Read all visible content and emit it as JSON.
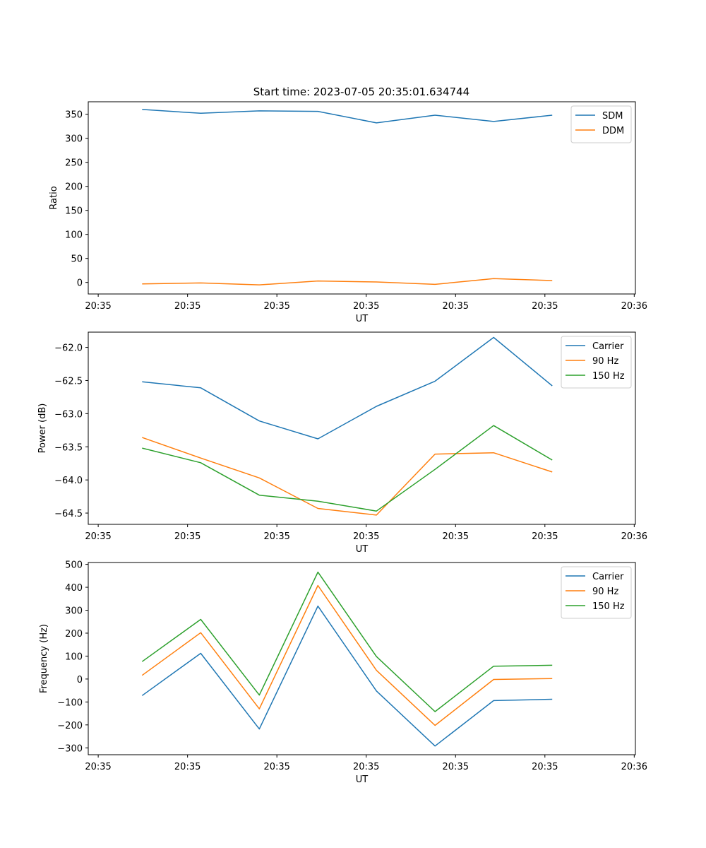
{
  "chart_data": [
    {
      "type": "line",
      "title": "Start time: 2023-07-05 20:35:01.634744",
      "xlabel": "UT",
      "ylabel": "Ratio",
      "x_index": [
        0,
        1,
        2,
        3,
        4,
        5,
        6,
        7
      ],
      "x_ticks": [
        {
          "pos": -0.75,
          "label": "20:35"
        },
        {
          "pos": 0.775,
          "label": "20:35"
        },
        {
          "pos": 2.3,
          "label": "20:35"
        },
        {
          "pos": 3.825,
          "label": "20:35"
        },
        {
          "pos": 5.35,
          "label": "20:35"
        },
        {
          "pos": 6.875,
          "label": "20:35"
        },
        {
          "pos": 8.4,
          "label": "20:36"
        }
      ],
      "xlim": [
        -0.92,
        8.42
      ],
      "ylim": [
        -24,
        376
      ],
      "y_ticks": [
        0,
        50,
        100,
        150,
        200,
        250,
        300,
        350
      ],
      "y_tick_labels": [
        "0",
        "50",
        "100",
        "150",
        "200",
        "250",
        "300",
        "350"
      ],
      "series": [
        {
          "name": "SDM",
          "color": "#1f77b4",
          "values": [
            360,
            352,
            357,
            356,
            332,
            348,
            335,
            348
          ]
        },
        {
          "name": "DDM",
          "color": "#ff7f0e",
          "values": [
            -3,
            -1,
            -5,
            3,
            1,
            -4,
            8,
            4
          ]
        }
      ],
      "legend": "upper-right"
    },
    {
      "type": "line",
      "title": "",
      "xlabel": "UT",
      "ylabel": "Power (dB)",
      "x_index": [
        0,
        1,
        2,
        3,
        4,
        5,
        6,
        7
      ],
      "x_ticks": [
        {
          "pos": -0.75,
          "label": "20:35"
        },
        {
          "pos": 0.775,
          "label": "20:35"
        },
        {
          "pos": 2.3,
          "label": "20:35"
        },
        {
          "pos": 3.825,
          "label": "20:35"
        },
        {
          "pos": 5.35,
          "label": "20:35"
        },
        {
          "pos": 6.875,
          "label": "20:35"
        },
        {
          "pos": 8.4,
          "label": "20:36"
        }
      ],
      "xlim": [
        -0.92,
        8.42
      ],
      "ylim": [
        -64.67,
        -61.77
      ],
      "y_ticks": [
        -64.5,
        -64.0,
        -63.5,
        -63.0,
        -62.5,
        -62.0
      ],
      "y_tick_labels": [
        "−64.5",
        "−64.0",
        "−63.5",
        "−63.0",
        "−62.5",
        "−62.0"
      ],
      "series": [
        {
          "name": "Carrier",
          "color": "#1f77b4",
          "values": [
            -62.52,
            -62.61,
            -63.11,
            -63.38,
            -62.89,
            -62.51,
            -61.85,
            -62.58
          ]
        },
        {
          "name": "90 Hz",
          "color": "#ff7f0e",
          "values": [
            -63.36,
            -63.67,
            -63.97,
            -64.43,
            -64.53,
            -63.61,
            -63.59,
            -63.88
          ]
        },
        {
          "name": "150 Hz",
          "color": "#2ca02c",
          "values": [
            -63.52,
            -63.74,
            -64.23,
            -64.32,
            -64.47,
            -63.84,
            -63.18,
            -63.7
          ]
        }
      ],
      "legend": "upper-right"
    },
    {
      "type": "line",
      "title": "",
      "xlabel": "UT",
      "ylabel": "Frequency (Hz)",
      "x_index": [
        0,
        1,
        2,
        3,
        4,
        5,
        6,
        7
      ],
      "x_ticks": [
        {
          "pos": -0.75,
          "label": "20:35"
        },
        {
          "pos": 0.775,
          "label": "20:35"
        },
        {
          "pos": 2.3,
          "label": "20:35"
        },
        {
          "pos": 3.825,
          "label": "20:35"
        },
        {
          "pos": 5.35,
          "label": "20:35"
        },
        {
          "pos": 6.875,
          "label": "20:35"
        },
        {
          "pos": 8.4,
          "label": "20:36"
        }
      ],
      "xlim": [
        -0.92,
        8.42
      ],
      "ylim": [
        -330,
        508
      ],
      "y_ticks": [
        -300,
        -200,
        -100,
        0,
        100,
        200,
        300,
        400,
        500
      ],
      "y_tick_labels": [
        "−300",
        "−200",
        "−100",
        "0",
        "100",
        "200",
        "300",
        "400",
        "500"
      ],
      "series": [
        {
          "name": "Carrier",
          "color": "#1f77b4",
          "values": [
            -72,
            112,
            -218,
            318,
            -52,
            -292,
            -94,
            -88
          ]
        },
        {
          "name": "90 Hz",
          "color": "#ff7f0e",
          "values": [
            16,
            202,
            -130,
            408,
            38,
            -202,
            -2,
            2
          ]
        },
        {
          "name": "150 Hz",
          "color": "#2ca02c",
          "values": [
            76,
            260,
            -70,
            466,
            98,
            -142,
            56,
            60
          ]
        }
      ],
      "legend": "upper-right"
    }
  ]
}
